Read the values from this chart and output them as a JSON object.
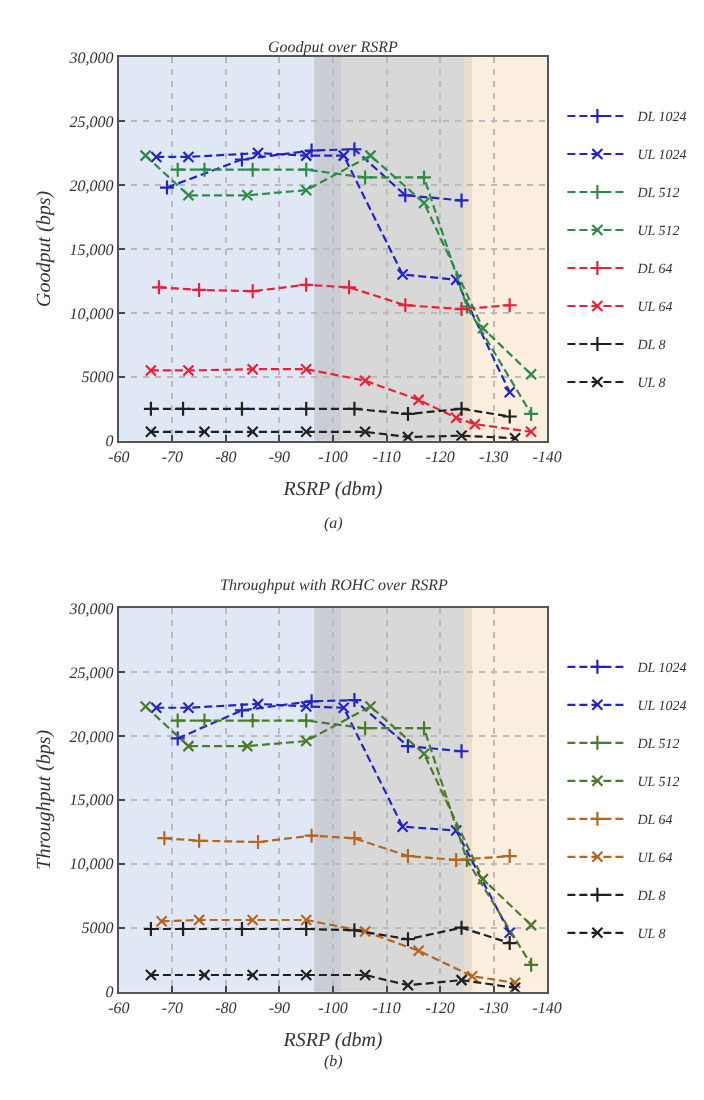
{
  "chart_data": [
    {
      "type": "line",
      "title": "Goodput over RSRP",
      "xlabel": "RSRP (dbm)",
      "ylabel": "Goodput (bps)",
      "annotations": [
        "(a)"
      ],
      "xlim": [
        -60,
        -140
      ],
      "xticks": [
        -60,
        -70,
        -80,
        -90,
        -100,
        -110,
        -120,
        -130,
        -140
      ],
      "ylim": [
        0,
        30000
      ],
      "yticks": [
        0,
        5000,
        {
          "value": 10000,
          "label": "10,000"
        },
        {
          "value": 15000,
          "label": "15,000"
        },
        {
          "value": 20000,
          "label": "20,000"
        },
        {
          "value": 25000,
          "label": "25,000"
        },
        {
          "value": 30000,
          "label": "30,000"
        }
      ],
      "grid": true,
      "legend": "right",
      "line_style": "dashed",
      "bands": [
        {
          "axis": "x",
          "from": -60,
          "to": -101.5,
          "color": "#c7d6ee"
        },
        {
          "axis": "x",
          "from": -96.5,
          "to": -126,
          "color": "#b8b8b8"
        },
        {
          "axis": "x",
          "from": -124.5,
          "to": -140,
          "color": "#fbe2c4"
        }
      ],
      "series": [
        {
          "name": "DL 1024",
          "color": "#2323c8",
          "marker": "cross",
          "x": [
            -69,
            -83,
            -96,
            -104,
            -113.5,
            -124
          ],
          "values": [
            19800,
            22000,
            22700,
            22800,
            19200,
            18800
          ]
        },
        {
          "name": "UL 1024",
          "color": "#2323c8",
          "marker": "x",
          "x": [
            -67,
            -73,
            -86,
            -95,
            -102,
            -113,
            -123,
            -133
          ],
          "values": [
            22200,
            22200,
            22500,
            22300,
            22300,
            13000,
            12600,
            3800
          ]
        },
        {
          "name": "DL 512",
          "color": "#2f8a4a",
          "marker": "cross",
          "x": [
            -71,
            -76,
            -85,
            -95,
            -106,
            -117,
            -125,
            -137
          ],
          "values": [
            21200,
            21200,
            21200,
            21200,
            20600,
            20600,
            10500,
            2100
          ]
        },
        {
          "name": "UL 512",
          "color": "#2f8a4a",
          "marker": "x",
          "x": [
            -65,
            -73,
            -84,
            -95,
            -107,
            -117,
            -128,
            -137
          ],
          "values": [
            22300,
            19200,
            19200,
            19600,
            22300,
            18600,
            8800,
            5200
          ]
        },
        {
          "name": "DL 64",
          "color": "#e8203a",
          "marker": "cross",
          "x": [
            -67.5,
            -75,
            -85,
            -95,
            -103,
            -113.5,
            -124,
            -133
          ],
          "values": [
            12000,
            11800,
            11700,
            12200,
            12000,
            10600,
            10300,
            10600
          ]
        },
        {
          "name": "UL 64",
          "color": "#e8203a",
          "marker": "x",
          "x": [
            -66,
            -73,
            -85,
            -95,
            -106,
            -116,
            -123,
            -126.5,
            -137
          ],
          "values": [
            5500,
            5500,
            5600,
            5600,
            4700,
            3200,
            1800,
            1300,
            700
          ]
        },
        {
          "name": "DL 8",
          "color": "#202020",
          "marker": "cross",
          "x": [
            -66,
            -72,
            -83,
            -95,
            -104,
            -114,
            -124,
            -133
          ],
          "values": [
            2500,
            2500,
            2500,
            2500,
            2500,
            2100,
            2500,
            1900
          ]
        },
        {
          "name": "UL 8",
          "color": "#202020",
          "marker": "x",
          "x": [
            -66,
            -76,
            -85,
            -95,
            -106,
            -114,
            -124,
            -134
          ],
          "values": [
            700,
            700,
            700,
            700,
            700,
            300,
            400,
            200
          ]
        }
      ]
    },
    {
      "type": "line",
      "title": "Throughput with ROHC over RSRP",
      "xlabel": "RSRP (dbm)",
      "ylabel": "Throughput (bps)",
      "annotations": [
        "(b)"
      ],
      "xlim": [
        -60,
        -140
      ],
      "xticks": [
        -60,
        -70,
        -80,
        -90,
        -100,
        -110,
        -120,
        -130,
        -140
      ],
      "ylim": [
        0,
        30000
      ],
      "yticks": [
        0,
        5000,
        {
          "value": 10000,
          "label": "10,000"
        },
        {
          "value": 15000,
          "label": "15,000"
        },
        {
          "value": 20000,
          "label": "20,000"
        },
        {
          "value": 25000,
          "label": "25,000"
        },
        {
          "value": 30000,
          "label": "30,000"
        }
      ],
      "grid": true,
      "legend": "right",
      "line_style": "dashed",
      "bands": [
        {
          "axis": "x",
          "from": -60,
          "to": -101.5,
          "color": "#c7d6ee"
        },
        {
          "axis": "x",
          "from": -96.5,
          "to": -126,
          "color": "#b8b8b8"
        },
        {
          "axis": "x",
          "from": -124.5,
          "to": -140,
          "color": "#fbe2c4"
        }
      ],
      "series": [
        {
          "name": "DL 1024",
          "color": "#2323c8",
          "marker": "cross",
          "x": [
            -71,
            -83,
            -96,
            -104,
            -114,
            -124
          ],
          "values": [
            19800,
            22000,
            22700,
            22800,
            19200,
            18800
          ]
        },
        {
          "name": "UL 1024",
          "color": "#2323c8",
          "marker": "x",
          "x": [
            -67,
            -73,
            -86,
            -95,
            -102,
            -113,
            -123,
            -133
          ],
          "values": [
            22200,
            22200,
            22500,
            22300,
            22200,
            12900,
            12600,
            4600
          ]
        },
        {
          "name": "DL 512",
          "color": "#4a7a2a",
          "marker": "cross",
          "x": [
            -71,
            -76,
            -85,
            -95,
            -106,
            -117,
            -125,
            -137
          ],
          "values": [
            21200,
            21200,
            21200,
            21200,
            20600,
            20600,
            10300,
            2100
          ]
        },
        {
          "name": "UL 512",
          "color": "#4a7a2a",
          "marker": "x",
          "x": [
            -65,
            -73,
            -84,
            -95,
            -107,
            -117,
            -128,
            -137
          ],
          "values": [
            22300,
            19200,
            19200,
            19600,
            22300,
            18600,
            8800,
            5200
          ]
        },
        {
          "name": "DL 64",
          "color": "#b5651d",
          "marker": "cross",
          "x": [
            -68.5,
            -75,
            -86,
            -96,
            -104,
            -114,
            -123,
            -133
          ],
          "values": [
            12000,
            11800,
            11700,
            12200,
            12000,
            10600,
            10300,
            10600
          ]
        },
        {
          "name": "UL 64",
          "color": "#b5651d",
          "marker": "x",
          "x": [
            -68,
            -75,
            -85,
            -95,
            -106,
            -116,
            -126,
            -134
          ],
          "values": [
            5500,
            5600,
            5600,
            5600,
            4700,
            3200,
            1200,
            700
          ]
        },
        {
          "name": "DL 8",
          "color": "#202020",
          "marker": "cross",
          "x": [
            -66,
            -72,
            -83,
            -95,
            -104,
            -114,
            -124,
            -133
          ],
          "values": [
            4900,
            4900,
            4900,
            4900,
            4800,
            4100,
            5000,
            3800
          ]
        },
        {
          "name": "UL 8",
          "color": "#202020",
          "marker": "x",
          "x": [
            -66,
            -76,
            -85,
            -95,
            -106,
            -114,
            -124,
            -134
          ],
          "values": [
            1300,
            1300,
            1300,
            1300,
            1300,
            500,
            900,
            300
          ]
        }
      ]
    }
  ]
}
